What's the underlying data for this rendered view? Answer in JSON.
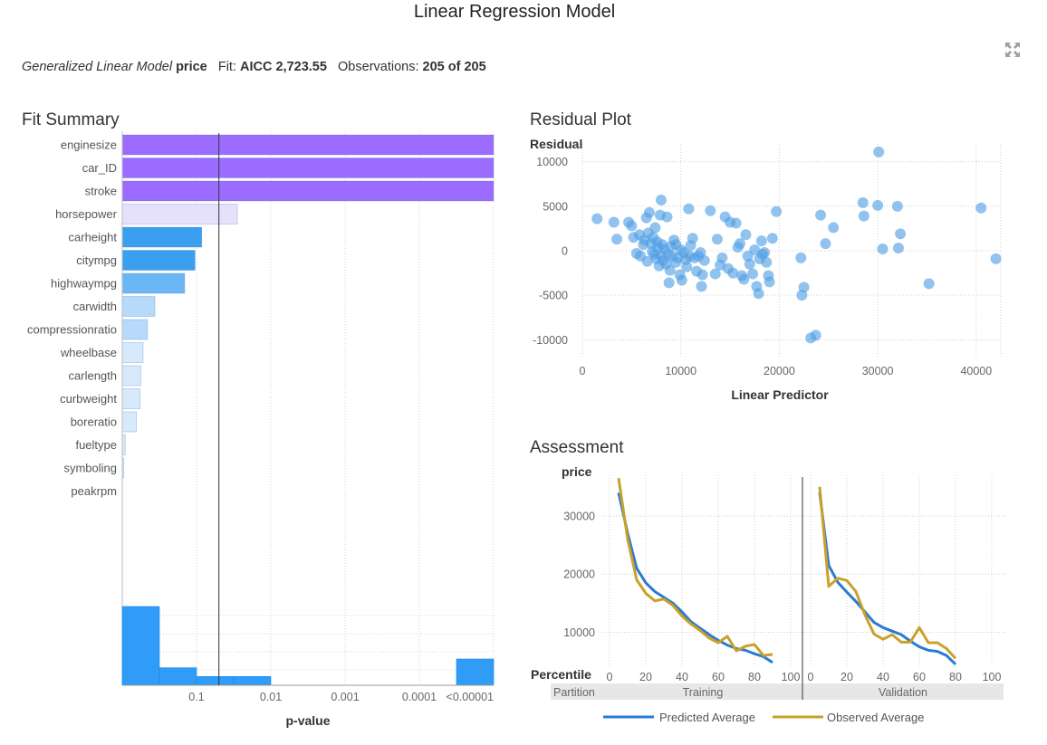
{
  "title": "Linear Regression Model",
  "header": {
    "model_type": "Generalized Linear Model",
    "response": "price",
    "fit_label": "Fit:",
    "fit_value": "AICC 2,723.55",
    "obs_label": "Observations:",
    "obs_value": "205 of 205",
    "expand_icon": "expand-icon"
  },
  "panels": {
    "fit_summary": "Fit Summary",
    "residual": "Residual Plot",
    "assessment": "Assessment"
  },
  "colors": {
    "purple": "#9b6cff",
    "light_purple": "#e6e1fb",
    "blue_dark": "#3b9ff0",
    "blue_mid": "#6bb7f5",
    "blue_light": "#b7dafb",
    "blue_faint": "#d7eafc",
    "hist": "#2f9cf7",
    "scatter": "#4f9ee3",
    "predicted": "#2b7bd0",
    "observed": "#c9a12a"
  },
  "chart_data": [
    {
      "type": "bar",
      "title": "Fit Summary",
      "xlabel": "p-value",
      "x_ticks": [
        "0.1",
        "0.01",
        "0.001",
        "0.0001",
        "<0.00001"
      ],
      "log_scale": true,
      "reference_line_p": 0.05,
      "categories": [
        "enginesize",
        "car_ID",
        "stroke",
        "horsepower",
        "carheight",
        "citympg",
        "highwaympg",
        "carwidth",
        "compressionratio",
        "wheelbase",
        "carlength",
        "curbweight",
        "boreratio",
        "fueltype",
        "symboling",
        "peakrpm"
      ],
      "neg_log10_p": [
        5.0,
        5.0,
        5.0,
        1.55,
        1.07,
        0.98,
        0.84,
        0.44,
        0.34,
        0.28,
        0.25,
        0.24,
        0.19,
        0.04,
        0.02,
        0.0
      ],
      "bar_colors": [
        "purple",
        "purple",
        "purple",
        "light_purple",
        "blue_dark",
        "blue_dark",
        "blue_mid",
        "blue_light",
        "blue_light",
        "blue_faint",
        "blue_faint",
        "blue_faint",
        "blue_faint",
        "blue_faint",
        "blue_faint",
        "blue_faint"
      ],
      "histogram": {
        "bins": [
          [
            0,
            0.5
          ],
          [
            0.5,
            1
          ],
          [
            1,
            1.5
          ],
          [
            1.5,
            2
          ],
          [
            2,
            2.5
          ],
          [
            2.5,
            3
          ],
          [
            3,
            3.5
          ],
          [
            3.5,
            4
          ],
          [
            4,
            4.5
          ],
          [
            4.5,
            5
          ]
        ],
        "counts": [
          9,
          2,
          1,
          1,
          0,
          0,
          0,
          0,
          0,
          3
        ]
      },
      "grid": true
    },
    {
      "type": "scatter",
      "title": "Residual Plot",
      "xlabel": "Linear Predictor",
      "ylabel": "Residual",
      "xlim": [
        0,
        42500
      ],
      "ylim": [
        -12000,
        12000
      ],
      "x_ticks": [
        0,
        10000,
        20000,
        30000,
        40000
      ],
      "y_ticks": [
        10000,
        5000,
        0,
        -5000,
        -10000
      ],
      "grid": true,
      "points": [
        [
          1500,
          3600
        ],
        [
          3200,
          3200
        ],
        [
          3500,
          1300
        ],
        [
          4700,
          3200
        ],
        [
          5000,
          2800
        ],
        [
          5200,
          1500
        ],
        [
          5500,
          -300
        ],
        [
          5800,
          1800
        ],
        [
          5900,
          -600
        ],
        [
          6200,
          700
        ],
        [
          6300,
          1200
        ],
        [
          6500,
          3700
        ],
        [
          6600,
          -1200
        ],
        [
          6700,
          2000
        ],
        [
          6800,
          4300
        ],
        [
          7000,
          800
        ],
        [
          7100,
          -100
        ],
        [
          7200,
          1500
        ],
        [
          7300,
          -400
        ],
        [
          7400,
          2600
        ],
        [
          7500,
          -900
        ],
        [
          7600,
          1000
        ],
        [
          7700,
          300
        ],
        [
          7800,
          -1700
        ],
        [
          7900,
          4000
        ],
        [
          8000,
          5700
        ],
        [
          8000,
          -600
        ],
        [
          8100,
          700
        ],
        [
          8200,
          -1100
        ],
        [
          8300,
          200
        ],
        [
          8500,
          -1500
        ],
        [
          8600,
          3800
        ],
        [
          8700,
          -400
        ],
        [
          8800,
          -3600
        ],
        [
          8900,
          -2200
        ],
        [
          9000,
          500
        ],
        [
          9100,
          -600
        ],
        [
          9300,
          1200
        ],
        [
          9500,
          -1300
        ],
        [
          9500,
          700
        ],
        [
          9700,
          -800
        ],
        [
          9900,
          -2700
        ],
        [
          10000,
          100
        ],
        [
          10100,
          -3300
        ],
        [
          10300,
          -200
        ],
        [
          10500,
          -1000
        ],
        [
          10600,
          -1800
        ],
        [
          10800,
          4700
        ],
        [
          10900,
          -600
        ],
        [
          11000,
          600
        ],
        [
          11200,
          1400
        ],
        [
          11400,
          -800
        ],
        [
          11600,
          -2300
        ],
        [
          11800,
          -600
        ],
        [
          12000,
          -200
        ],
        [
          12100,
          -4000
        ],
        [
          12200,
          -2700
        ],
        [
          12400,
          -1100
        ],
        [
          13000,
          4500
        ],
        [
          13500,
          -2600
        ],
        [
          13700,
          1300
        ],
        [
          14000,
          -1600
        ],
        [
          14200,
          -800
        ],
        [
          14500,
          3800
        ],
        [
          14800,
          -2000
        ],
        [
          15000,
          3200
        ],
        [
          15300,
          -2500
        ],
        [
          15600,
          3100
        ],
        [
          15800,
          400
        ],
        [
          16000,
          800
        ],
        [
          16200,
          -2800
        ],
        [
          16400,
          -3200
        ],
        [
          16600,
          1800
        ],
        [
          16800,
          -600
        ],
        [
          17000,
          -1500
        ],
        [
          17300,
          -2600
        ],
        [
          17500,
          100
        ],
        [
          17700,
          -4000
        ],
        [
          17900,
          -4800
        ],
        [
          18000,
          -900
        ],
        [
          18200,
          1100
        ],
        [
          18300,
          -400
        ],
        [
          18500,
          -200
        ],
        [
          18700,
          -1300
        ],
        [
          18900,
          -2800
        ],
        [
          19000,
          -3500
        ],
        [
          19300,
          1400
        ],
        [
          19700,
          4400
        ],
        [
          22200,
          -800
        ],
        [
          22300,
          -5000
        ],
        [
          22500,
          -4100
        ],
        [
          23200,
          -9800
        ],
        [
          23700,
          -9500
        ],
        [
          24200,
          4000
        ],
        [
          24700,
          800
        ],
        [
          25500,
          2600
        ],
        [
          28500,
          5400
        ],
        [
          28600,
          3900
        ],
        [
          30000,
          5100
        ],
        [
          30100,
          11100
        ],
        [
          30500,
          200
        ],
        [
          32000,
          5000
        ],
        [
          32100,
          300
        ],
        [
          32300,
          1900
        ],
        [
          35200,
          -3700
        ],
        [
          40500,
          4800
        ],
        [
          42000,
          -900
        ]
      ]
    },
    {
      "type": "line",
      "title": "Assessment",
      "ylabel": "price",
      "xlabel": "Percentile",
      "ylim": [
        4000,
        37000
      ],
      "y_ticks": [
        10000,
        20000,
        30000
      ],
      "x_ticks": [
        0,
        20,
        40,
        60,
        80,
        100
      ],
      "partition_label": "Partition",
      "partitions": [
        {
          "name": "Training",
          "x": [
            5,
            10,
            15,
            20,
            25,
            30,
            35,
            40,
            45,
            50,
            55,
            60,
            65,
            70,
            75,
            80,
            85,
            90
          ],
          "predicted": [
            34000,
            27000,
            21000,
            18500,
            17000,
            16000,
            15000,
            13500,
            11800,
            10700,
            9600,
            8600,
            7800,
            7200,
            6900,
            6300,
            5800,
            4800
          ],
          "observed": [
            36500,
            26000,
            19000,
            16700,
            15400,
            15700,
            14600,
            12800,
            11400,
            10300,
            9000,
            8200,
            9300,
            6800,
            7600,
            7900,
            6000,
            6200
          ]
        },
        {
          "name": "Validation",
          "x": [
            5,
            10,
            15,
            20,
            25,
            30,
            35,
            40,
            45,
            50,
            55,
            60,
            65,
            70,
            75,
            80
          ],
          "predicted": [
            34000,
            21500,
            18600,
            16900,
            15300,
            13500,
            11700,
            10800,
            10200,
            9600,
            8500,
            7500,
            6900,
            6700,
            6000,
            4500
          ],
          "observed": [
            35000,
            17900,
            19300,
            18900,
            17000,
            13000,
            9700,
            8800,
            9600,
            8300,
            8300,
            10800,
            8200,
            8200,
            7200,
            5500
          ]
        }
      ],
      "series": [
        {
          "name": "Predicted Average",
          "color": "predicted"
        },
        {
          "name": "Observed Average",
          "color": "observed"
        }
      ],
      "grid": true
    }
  ]
}
